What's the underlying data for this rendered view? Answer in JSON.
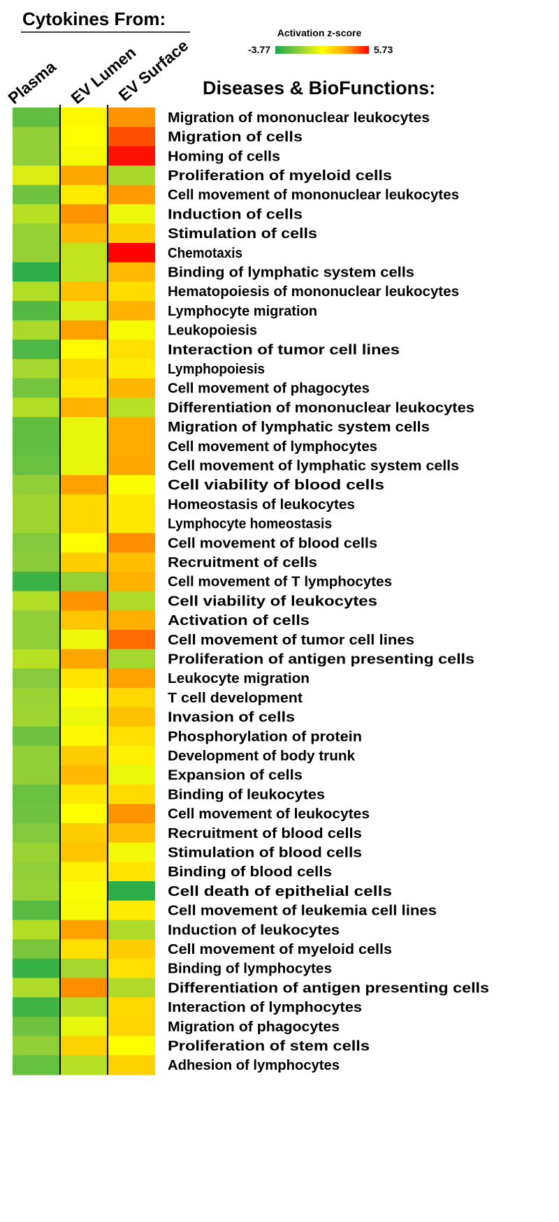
{
  "chart_data": {
    "type": "heatmap",
    "title": "Cytokines From:",
    "ylabel": "Diseases & BioFunctions:",
    "colorbar": {
      "label": "Activation z-score",
      "min": -3.77,
      "max": 5.73,
      "min_label": "-3.77",
      "max_label": "5.73",
      "colors": [
        "#1aa84a",
        "#8ccc3a",
        "#ffff00",
        "#ffa500",
        "#ff0000"
      ]
    },
    "columns": [
      "Plasma",
      "EV Lumen",
      "EV Surface"
    ],
    "rows": [
      "Migration of mononuclear leukocytes",
      "Migration of cells",
      "Homing of cells",
      "Proliferation of myeloid cells",
      "Cell movement of mononuclear leukocytes",
      "Induction of cells",
      "Stimulation of cells",
      "Chemotaxis",
      "Binding of lymphatic system cells",
      "Hematopoiesis of mononuclear leukocytes",
      "Lymphocyte migration",
      "Leukopoiesis",
      "Interaction of tumor cell lines",
      "Lymphopoiesis",
      "Cell movement of phagocytes",
      "Differentiation of mononuclear leukocytes",
      "Migration of lymphatic system cells",
      "Cell movement of lymphocytes",
      "Cell movement of lymphatic system cells",
      "Cell viability of blood cells",
      "Homeostasis of leukocytes",
      "Lymphocyte homeostasis",
      "Cell movement of blood cells",
      "Recruitment of cells",
      "Cell movement of T lymphocytes",
      "Cell viability of leukocytes",
      "Activation of cells",
      "Cell movement of tumor cell lines",
      "Proliferation of antigen presenting cells",
      "Leukocyte migration",
      "T cell development",
      "Invasion of cells",
      "Phosphorylation of protein",
      "Development of body trunk",
      "Expansion of cells",
      "Binding of leukocytes",
      "Cell movement of leukocytes",
      "Recruitment of blood cells",
      "Stimulation of blood cells",
      "Binding of blood cells",
      "Cell death of epithelial cells",
      "Cell movement of leukemia cell lines",
      "Induction of leukocytes",
      "Cell movement of myeloid cells",
      "Binding of lymphocytes",
      "Differentiation of antigen presenting cells",
      "Interaction of lymphocytes",
      "Migration of phagocytes",
      "Proliferation of stem cells",
      "Adhesion of lymphocytes"
    ],
    "values": [
      [
        -2.3,
        1.2,
        3.6
      ],
      [
        -1.3,
        1.0,
        4.6
      ],
      [
        -1.3,
        0.8,
        5.5
      ],
      [
        0.2,
        3.3,
        -0.8
      ],
      [
        -2.0,
        1.5,
        3.5
      ],
      [
        -0.5,
        3.6,
        0.6
      ],
      [
        -1.2,
        2.8,
        2.3
      ],
      [
        -1.2,
        -0.3,
        5.7
      ],
      [
        -3.4,
        -0.3,
        2.8
      ],
      [
        -0.6,
        2.6,
        1.9
      ],
      [
        -2.6,
        0.2,
        3.0
      ],
      [
        -0.8,
        3.4,
        0.8
      ],
      [
        -2.7,
        1.1,
        1.8
      ],
      [
        -0.9,
        2.0,
        1.5
      ],
      [
        -1.9,
        1.6,
        2.9
      ],
      [
        -0.6,
        3.0,
        -0.5
      ],
      [
        -2.3,
        0.5,
        3.2
      ],
      [
        -2.3,
        0.5,
        3.2
      ],
      [
        -2.1,
        0.5,
        3.3
      ],
      [
        -1.3,
        3.4,
        0.9
      ],
      [
        -1.0,
        2.0,
        1.6
      ],
      [
        -1.0,
        2.0,
        1.6
      ],
      [
        -1.6,
        1.0,
        3.7
      ],
      [
        -1.4,
        2.3,
        2.7
      ],
      [
        -3.1,
        -1.2,
        3.0
      ],
      [
        -0.6,
        3.6,
        -0.7
      ],
      [
        -1.3,
        2.5,
        3.1
      ],
      [
        -1.3,
        0.6,
        4.2
      ],
      [
        -0.5,
        3.3,
        -0.9
      ],
      [
        -1.5,
        1.7,
        3.4
      ],
      [
        -1.1,
        0.9,
        2.0
      ],
      [
        -1.0,
        0.6,
        2.6
      ],
      [
        -2.0,
        1.2,
        1.8
      ],
      [
        -1.3,
        2.3,
        1.4
      ],
      [
        -1.3,
        2.8,
        0.6
      ],
      [
        -2.1,
        1.6,
        1.9
      ],
      [
        -2.0,
        1.0,
        3.6
      ],
      [
        -1.6,
        2.3,
        2.7
      ],
      [
        -1.1,
        2.5,
        0.7
      ],
      [
        -1.3,
        1.4,
        1.7
      ],
      [
        -1.2,
        0.9,
        -3.4
      ],
      [
        -2.5,
        0.8,
        1.5
      ],
      [
        -0.6,
        3.4,
        -0.7
      ],
      [
        -1.8,
        1.8,
        2.3
      ],
      [
        -3.2,
        -0.9,
        1.8
      ],
      [
        -0.7,
        3.7,
        -0.7
      ],
      [
        -3.0,
        -0.6,
        2.0
      ],
      [
        -2.0,
        0.5,
        2.1
      ],
      [
        -1.3,
        2.2,
        1.0
      ],
      [
        -2.2,
        -0.5,
        2.2
      ]
    ]
  }
}
